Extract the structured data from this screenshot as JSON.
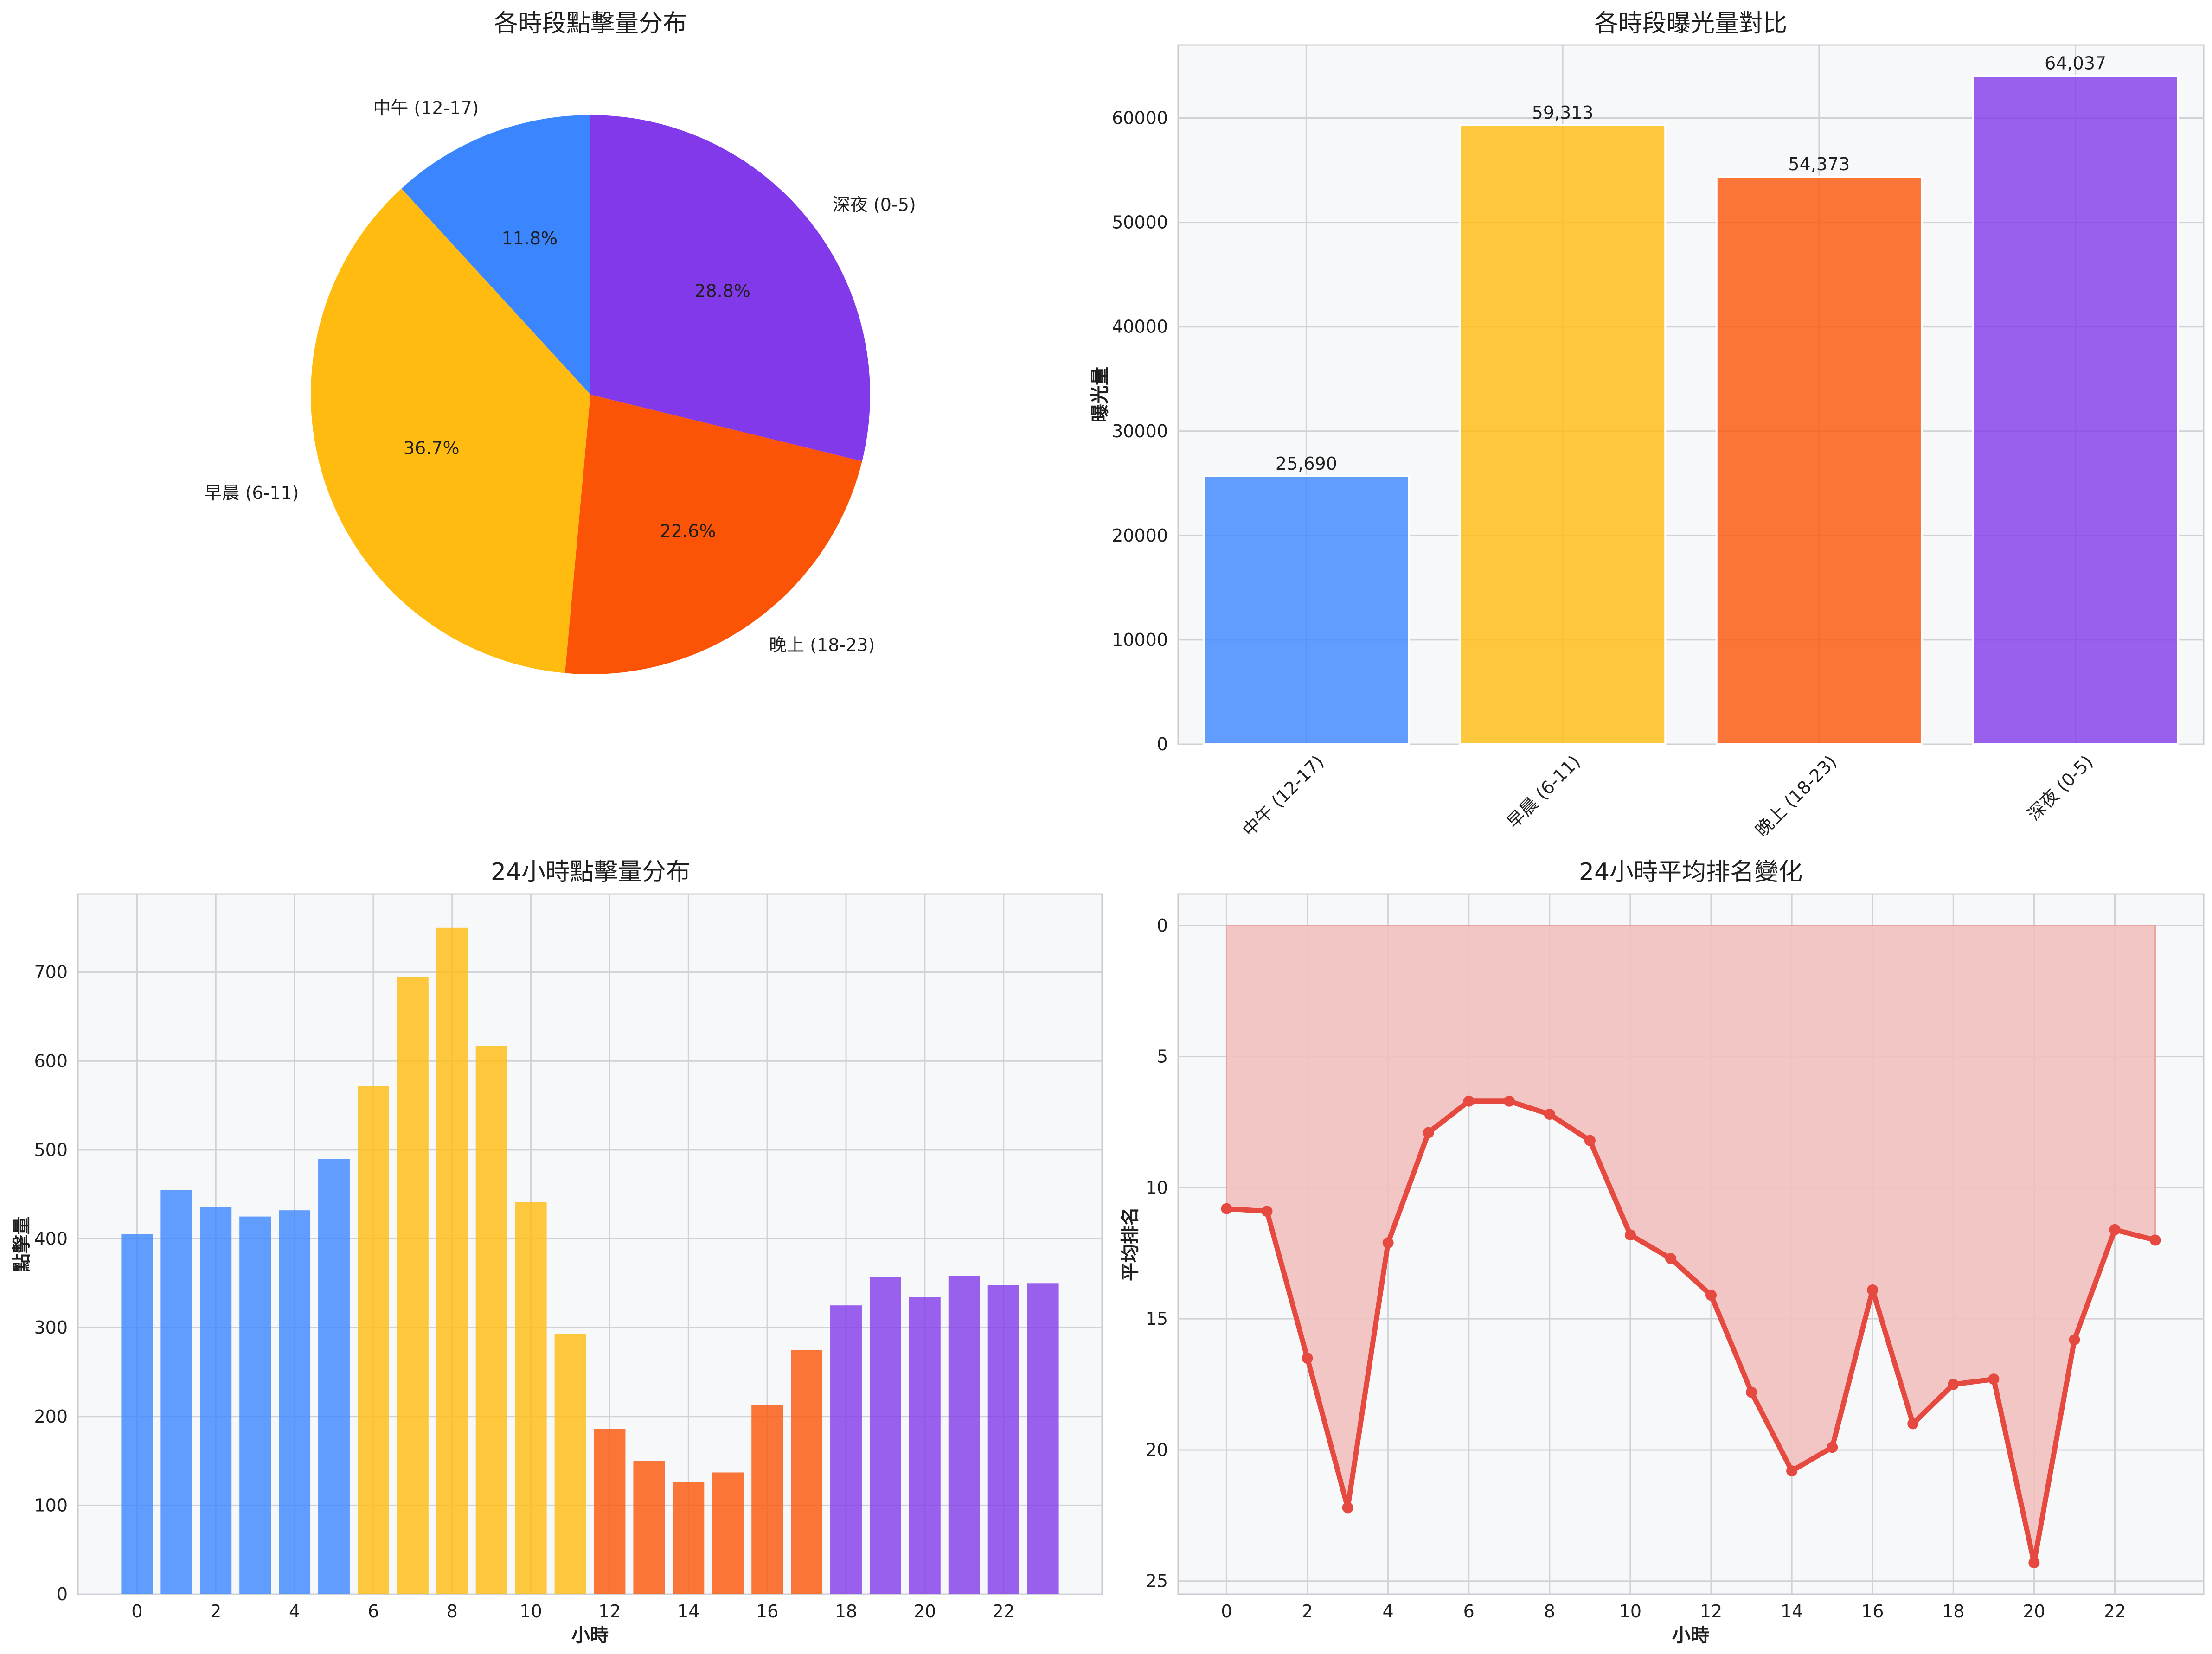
{
  "colors": {
    "midday": "#3b86ff",
    "morning": "#ffbb0f",
    "evening": "#fc5407",
    "night": "#8139ea",
    "rank_line": "#e54940",
    "rank_fill": "#f1c0be"
  },
  "chart_data": [
    {
      "type": "pie",
      "title": "各時段點擊量分布",
      "categories": [
        "中午 (12-17)",
        "早晨 (6-11)",
        "晚上 (18-23)",
        "深夜 (0-5)"
      ],
      "values": [
        11.8,
        36.7,
        22.6,
        28.8
      ],
      "value_labels": [
        "11.8%",
        "36.7%",
        "22.6%",
        "28.8%"
      ],
      "start_angle_deg": 90,
      "direction": "counterclockwise"
    },
    {
      "type": "bar",
      "title": "各時段曝光量對比",
      "categories": [
        "中午 (12-17)",
        "早晨 (6-11)",
        "晚上 (18-23)",
        "深夜 (0-5)"
      ],
      "values": [
        25690,
        59313,
        54373,
        64037
      ],
      "value_labels": [
        "25,690",
        "59,313",
        "54,373",
        "64,037"
      ],
      "xlabel": "",
      "ylabel": "曝光量",
      "ylim": [
        0,
        67000
      ],
      "yticks": [
        0,
        10000,
        20000,
        30000,
        40000,
        50000,
        60000
      ],
      "grid": true
    },
    {
      "type": "bar",
      "title": "24小時點擊量分布",
      "x": [
        0,
        1,
        2,
        3,
        4,
        5,
        6,
        7,
        8,
        9,
        10,
        11,
        12,
        13,
        14,
        15,
        16,
        17,
        18,
        19,
        20,
        21,
        22,
        23
      ],
      "values": [
        405,
        455,
        436,
        425,
        432,
        490,
        572,
        695,
        750,
        617,
        441,
        293,
        186,
        150,
        126,
        137,
        213,
        275,
        325,
        357,
        334,
        358,
        348,
        350
      ],
      "groups": [
        "night",
        "night",
        "night",
        "night",
        "night",
        "night",
        "morning",
        "morning",
        "morning",
        "morning",
        "morning",
        "morning",
        "evening",
        "evening",
        "evening",
        "evening",
        "evening",
        "evening",
        "night2",
        "night2",
        "night2",
        "night2",
        "night2",
        "night2"
      ],
      "xlabel": "小時",
      "ylabel": "點擊量",
      "xlim": [
        -1.5,
        24.5
      ],
      "ylim": [
        0,
        788
      ],
      "xticks": [
        0,
        2,
        4,
        6,
        8,
        10,
        12,
        14,
        16,
        18,
        20,
        22
      ],
      "yticks": [
        0,
        100,
        200,
        300,
        400,
        500,
        600,
        700
      ],
      "grid": true
    },
    {
      "type": "area",
      "title": "24小時平均排名變化",
      "x": [
        0,
        1,
        2,
        3,
        4,
        5,
        6,
        7,
        8,
        9,
        10,
        11,
        12,
        13,
        14,
        15,
        16,
        17,
        18,
        19,
        20,
        21,
        22,
        23
      ],
      "values": [
        10.8,
        10.9,
        16.5,
        22.2,
        12.1,
        7.9,
        6.7,
        6.7,
        7.2,
        8.2,
        11.8,
        12.7,
        14.1,
        17.8,
        20.8,
        19.9,
        13.9,
        19.0,
        17.5,
        17.3,
        24.3,
        15.8,
        11.6,
        12.0
      ],
      "fill_to": 0,
      "y_inverted": true,
      "xlabel": "小時",
      "ylabel": "平均排名",
      "xlim": [
        -1.2,
        24.2
      ],
      "ylim": [
        -1.2,
        25.5
      ],
      "xticks": [
        0,
        2,
        4,
        6,
        8,
        10,
        12,
        14,
        16,
        18,
        20,
        22
      ],
      "yticks": [
        0,
        5,
        10,
        15,
        20,
        25
      ],
      "grid": true
    }
  ]
}
